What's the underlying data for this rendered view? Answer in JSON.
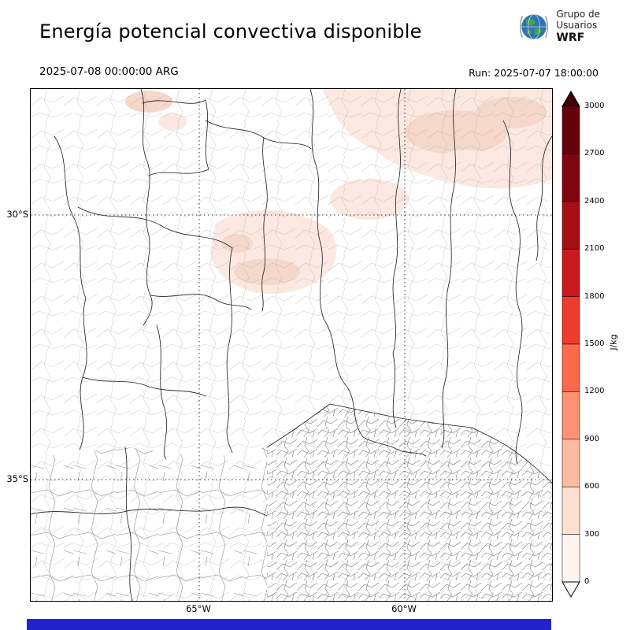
{
  "header": {
    "title": "Energía potencial convectiva disponible",
    "valid_time": "2025-07-08 00:00:00 ARG",
    "run_time": "Run: 2025-07-07 18:00:00",
    "logo": {
      "line1": "Grupo de",
      "line2": "Usuarios",
      "line3": "WRF"
    }
  },
  "map": {
    "lat_labels": [
      "30°S",
      "35°S"
    ],
    "lon_labels": [
      "65°W",
      "60°W"
    ],
    "shade_colors": {
      "light": "#fbe9e1",
      "medium": "#f5d8ca"
    }
  },
  "colorbar": {
    "unit": "J/kg",
    "ticks": [
      0,
      300,
      600,
      900,
      1200,
      1500,
      1800,
      2100,
      2400,
      2700,
      3000
    ],
    "max": 3000,
    "segment_colors_bottom_to_top": [
      "#fff5f0",
      "#fee0d2",
      "#fcbba1",
      "#fc9272",
      "#fb6a4a",
      "#ef3b2c",
      "#cb181d",
      "#a50f15",
      "#7f0511",
      "#67000d"
    ],
    "under_color": "#ffffff",
    "over_color": "#40000a"
  },
  "footer": {
    "bar_color": "#2222cc"
  }
}
